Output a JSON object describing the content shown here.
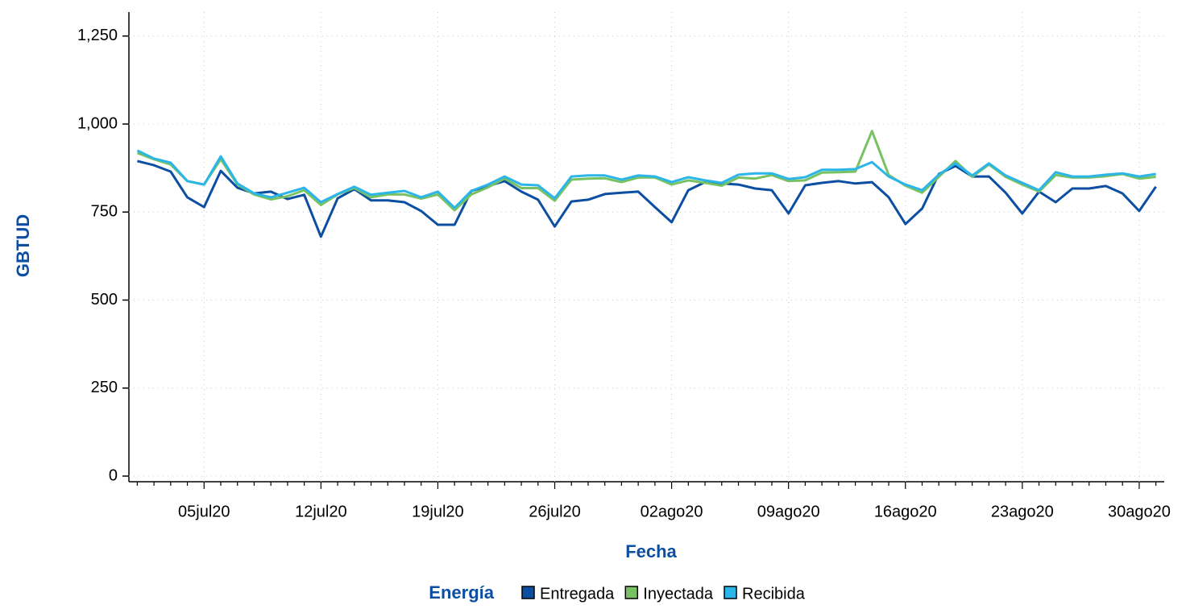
{
  "chart_data": {
    "type": "line",
    "y_label": "GBTUD",
    "x_label": "Fecha",
    "legend_title": "Energía",
    "categories": [
      null,
      null,
      null,
      null,
      "05jul20",
      null,
      null,
      null,
      null,
      null,
      null,
      "12jul20",
      null,
      null,
      null,
      null,
      null,
      null,
      "19jul20",
      null,
      null,
      null,
      null,
      null,
      null,
      "26jul20",
      null,
      null,
      null,
      null,
      null,
      null,
      "02ago20",
      null,
      null,
      null,
      null,
      null,
      null,
      "09ago20",
      null,
      null,
      null,
      null,
      null,
      null,
      "16ago20",
      null,
      null,
      null,
      null,
      null,
      null,
      "23ago20",
      null,
      null,
      null,
      null,
      null,
      null,
      "30ago20",
      null
    ],
    "series": [
      {
        "name": "Entregada",
        "color": "#0b4ea2",
        "values": [
          895,
          883,
          865,
          792,
          764,
          867,
          819,
          803,
          808,
          787,
          799,
          680,
          789,
          815,
          783,
          783,
          778,
          753,
          714,
          714,
          810,
          824,
          838,
          808,
          785,
          709,
          780,
          785,
          801,
          805,
          808,
          764,
          721,
          812,
          835,
          831,
          828,
          817,
          812,
          746,
          826,
          833,
          838,
          831,
          835,
          792,
          716,
          760,
          858,
          881,
          851,
          851,
          805,
          746,
          808,
          778,
          817,
          817,
          824,
          803,
          753,
          822
        ]
      },
      {
        "name": "Inyectada",
        "color": "#78c263",
        "values": [
          918,
          900,
          885,
          838,
          828,
          900,
          828,
          800,
          786,
          795,
          812,
          770,
          800,
          818,
          792,
          800,
          800,
          788,
          800,
          755,
          800,
          820,
          845,
          818,
          818,
          782,
          842,
          845,
          846,
          835,
          848,
          848,
          828,
          840,
          833,
          825,
          848,
          845,
          855,
          838,
          840,
          862,
          863,
          865,
          980,
          855,
          825,
          805,
          850,
          895,
          850,
          885,
          850,
          828,
          808,
          855,
          848,
          848,
          852,
          858,
          845,
          850
        ]
      },
      {
        "name": "Recibida",
        "color": "#2cb5e8",
        "values": [
          925,
          902,
          890,
          838,
          828,
          908,
          831,
          803,
          792,
          805,
          819,
          778,
          801,
          822,
          799,
          805,
          810,
          792,
          808,
          762,
          810,
          828,
          851,
          828,
          826,
          789,
          851,
          854,
          854,
          842,
          854,
          851,
          835,
          849,
          840,
          833,
          856,
          860,
          860,
          844,
          849,
          870,
          870,
          872,
          892,
          851,
          828,
          812,
          856,
          888,
          854,
          888,
          854,
          833,
          812,
          863,
          851,
          851,
          856,
          860,
          851,
          858
        ]
      }
    ],
    "ylim": [
      -16,
      1318
    ],
    "yticks": [
      0,
      250,
      500,
      750,
      {
        "value": 1000,
        "label": "1,000"
      },
      {
        "value": 1250,
        "label": "1,250"
      }
    ],
    "grid": true,
    "legend": "bottom"
  }
}
